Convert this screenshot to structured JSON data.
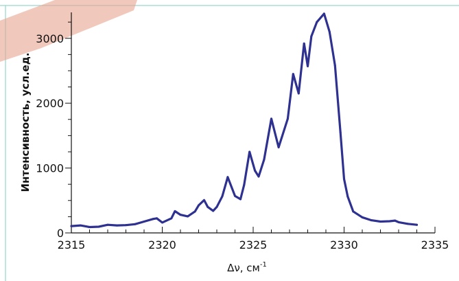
{
  "chart_data": {
    "type": "line",
    "xlabel": "Δν, см",
    "xlabel_superscript": "-1",
    "ylabel": "Интенсивность, усл.ед.",
    "xlim": [
      2315,
      2335
    ],
    "ylim": [
      0,
      3400
    ],
    "x_ticks": [
      "2315",
      "2320",
      "2325",
      "2330",
      "2335"
    ],
    "y_ticks": [
      "0",
      "1000",
      "2000",
      "3000"
    ],
    "grid": false,
    "series": [
      {
        "color": "#2e3190",
        "x": [
          2315.0,
          2315.5,
          2316.0,
          2316.5,
          2317.0,
          2317.5,
          2318.0,
          2318.5,
          2319.0,
          2319.5,
          2319.7,
          2320.0,
          2320.5,
          2320.7,
          2321.0,
          2321.4,
          2321.8,
          2322.0,
          2322.3,
          2322.5,
          2322.8,
          2323.0,
          2323.3,
          2323.6,
          2324.0,
          2324.3,
          2324.5,
          2324.8,
          2325.1,
          2325.3,
          2325.6,
          2326.0,
          2326.4,
          2326.9,
          2327.2,
          2327.5,
          2327.8,
          2328.0,
          2328.2,
          2328.5,
          2328.9,
          2329.2,
          2329.5,
          2329.8,
          2330.0,
          2330.2,
          2330.5,
          2331.0,
          2331.5,
          2332.0,
          2332.5,
          2332.8,
          2333.0,
          2333.5,
          2334.0
        ],
        "y": [
          105,
          115,
          90,
          95,
          125,
          115,
          120,
          135,
          175,
          215,
          225,
          160,
          225,
          335,
          280,
          255,
          330,
          425,
          505,
          400,
          340,
          400,
          565,
          860,
          570,
          520,
          740,
          1250,
          960,
          870,
          1130,
          1760,
          1320,
          1760,
          2450,
          2150,
          2920,
          2570,
          3030,
          3250,
          3380,
          3100,
          2580,
          1550,
          830,
          560,
          330,
          240,
          195,
          175,
          180,
          190,
          165,
          140,
          125
        ]
      }
    ]
  }
}
